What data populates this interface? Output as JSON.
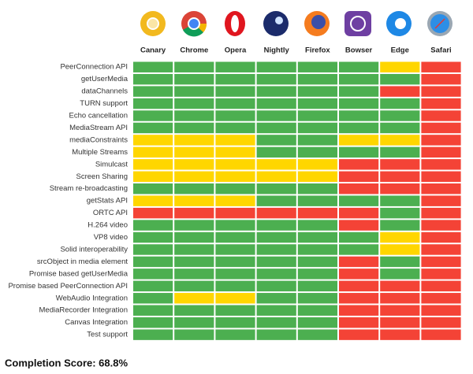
{
  "browsers": [
    "Canary",
    "Chrome",
    "Opera",
    "Nightly",
    "Firefox",
    "Bowser",
    "Edge",
    "Safari"
  ],
  "rows": [
    {
      "label": "PeerConnection API",
      "cells": [
        "#4caf50",
        "#4caf50",
        "#4caf50",
        "#4caf50",
        "#4caf50",
        "#4caf50",
        "#ffd600",
        "#f44336"
      ]
    },
    {
      "label": "getUserMedia",
      "cells": [
        "#4caf50",
        "#4caf50",
        "#4caf50",
        "#4caf50",
        "#4caf50",
        "#4caf50",
        "#4caf50",
        "#f44336"
      ]
    },
    {
      "label": "dataChannels",
      "cells": [
        "#4caf50",
        "#4caf50",
        "#4caf50",
        "#4caf50",
        "#4caf50",
        "#4caf50",
        "#f44336",
        "#f44336"
      ]
    },
    {
      "label": "TURN support",
      "cells": [
        "#4caf50",
        "#4caf50",
        "#4caf50",
        "#4caf50",
        "#4caf50",
        "#4caf50",
        "#4caf50",
        "#f44336"
      ]
    },
    {
      "label": "Echo cancellation",
      "cells": [
        "#4caf50",
        "#4caf50",
        "#4caf50",
        "#4caf50",
        "#4caf50",
        "#4caf50",
        "#4caf50",
        "#f44336"
      ]
    },
    {
      "label": "MediaStream API",
      "cells": [
        "#4caf50",
        "#4caf50",
        "#4caf50",
        "#4caf50",
        "#4caf50",
        "#4caf50",
        "#4caf50",
        "#f44336"
      ]
    },
    {
      "label": "mediaConstraints",
      "cells": [
        "#ffd600",
        "#ffd600",
        "#ffd600",
        "#4caf50",
        "#4caf50",
        "#ffd600",
        "#ffd600",
        "#f44336"
      ]
    },
    {
      "label": "Multiple Streams",
      "cells": [
        "#ffd600",
        "#ffd600",
        "#ffd600",
        "#4caf50",
        "#4caf50",
        "#4caf50",
        "#4caf50",
        "#f44336"
      ]
    },
    {
      "label": "Simulcast",
      "cells": [
        "#ffd600",
        "#ffd600",
        "#ffd600",
        "#ffd600",
        "#ffd600",
        "#f44336",
        "#f44336",
        "#f44336"
      ]
    },
    {
      "label": "Screen Sharing",
      "cells": [
        "#ffd600",
        "#ffd600",
        "#ffd600",
        "#ffd600",
        "#ffd600",
        "#f44336",
        "#f44336",
        "#f44336"
      ]
    },
    {
      "label": "Stream re-broadcasting",
      "cells": [
        "#4caf50",
        "#4caf50",
        "#4caf50",
        "#4caf50",
        "#4caf50",
        "#f44336",
        "#f44336",
        "#f44336"
      ]
    },
    {
      "label": "getStats API",
      "cells": [
        "#ffd600",
        "#ffd600",
        "#ffd600",
        "#4caf50",
        "#4caf50",
        "#4caf50",
        "#4caf50",
        "#f44336"
      ]
    },
    {
      "label": "ORTC API",
      "cells": [
        "#f44336",
        "#f44336",
        "#f44336",
        "#f44336",
        "#f44336",
        "#f44336",
        "#4caf50",
        "#f44336"
      ]
    },
    {
      "label": "H.264 video",
      "cells": [
        "#4caf50",
        "#4caf50",
        "#4caf50",
        "#4caf50",
        "#4caf50",
        "#f44336",
        "#4caf50",
        "#f44336"
      ]
    },
    {
      "label": "VP8 video",
      "cells": [
        "#4caf50",
        "#4caf50",
        "#4caf50",
        "#4caf50",
        "#4caf50",
        "#4caf50",
        "#ffd600",
        "#f44336"
      ]
    },
    {
      "label": "Solid interoperability",
      "cells": [
        "#4caf50",
        "#4caf50",
        "#4caf50",
        "#4caf50",
        "#4caf50",
        "#4caf50",
        "#ffd600",
        "#f44336"
      ]
    },
    {
      "label": "srcObject in media element",
      "cells": [
        "#4caf50",
        "#4caf50",
        "#4caf50",
        "#4caf50",
        "#4caf50",
        "#f44336",
        "#4caf50",
        "#f44336"
      ]
    },
    {
      "label": "Promise based getUserMedia",
      "cells": [
        "#4caf50",
        "#4caf50",
        "#4caf50",
        "#4caf50",
        "#4caf50",
        "#f44336",
        "#4caf50",
        "#f44336"
      ]
    },
    {
      "label": "Promise based PeerConnection API",
      "cells": [
        "#4caf50",
        "#4caf50",
        "#4caf50",
        "#4caf50",
        "#4caf50",
        "#f44336",
        "#f44336",
        "#f44336"
      ]
    },
    {
      "label": "WebAudio Integration",
      "cells": [
        "#4caf50",
        "#ffd600",
        "#ffd600",
        "#4caf50",
        "#4caf50",
        "#f44336",
        "#f44336",
        "#f44336"
      ]
    },
    {
      "label": "MediaRecorder Integration",
      "cells": [
        "#4caf50",
        "#4caf50",
        "#4caf50",
        "#4caf50",
        "#4caf50",
        "#f44336",
        "#f44336",
        "#f44336"
      ]
    },
    {
      "label": "Canvas Integration",
      "cells": [
        "#4caf50",
        "#4caf50",
        "#4caf50",
        "#4caf50",
        "#4caf50",
        "#f44336",
        "#f44336",
        "#f44336"
      ]
    },
    {
      "label": "Test support",
      "cells": [
        "#4caf50",
        "#4caf50",
        "#4caf50",
        "#4caf50",
        "#4caf50",
        "#f44336",
        "#f44336",
        "#f44336"
      ]
    }
  ],
  "footer": "Completion Score: 68.8%"
}
